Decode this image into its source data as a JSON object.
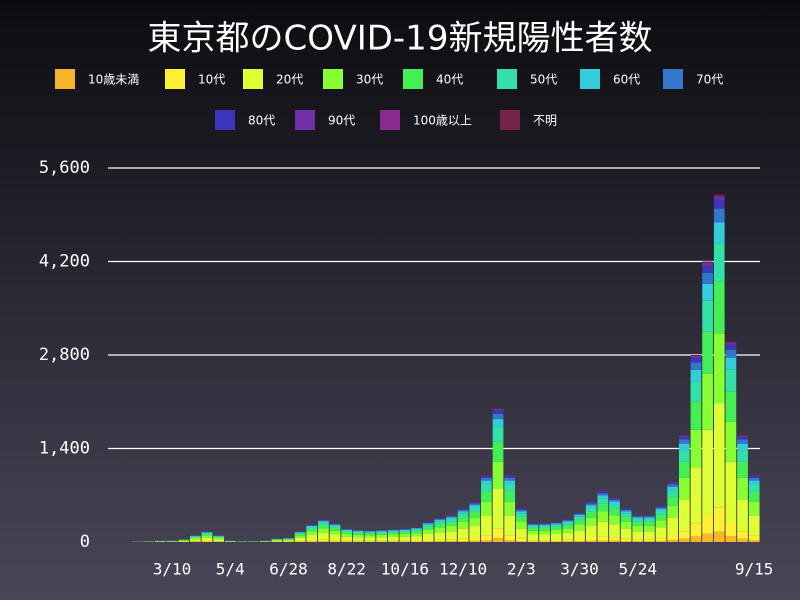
{
  "chart_data": {
    "type": "stacked_bar",
    "title": "東京都のCOVID-19新規陽性者数",
    "categories": [
      null,
      null,
      null,
      null,
      null,
      "3/10",
      null,
      null,
      null,
      null,
      "5/4",
      null,
      null,
      null,
      null,
      "6/28",
      null,
      null,
      null,
      null,
      "8/22",
      null,
      null,
      null,
      null,
      "10/16",
      null,
      null,
      null,
      null,
      "12/10",
      null,
      null,
      null,
      null,
      "2/3",
      null,
      null,
      null,
      null,
      "3/30",
      null,
      null,
      null,
      null,
      "5/24",
      null,
      null,
      null,
      null,
      null,
      null,
      null,
      null,
      null,
      "9/15"
    ],
    "ylim": [
      0,
      5600
    ],
    "yticks": [
      0,
      {
        "value": 1400,
        "label": "1,400"
      },
      {
        "value": 2800,
        "label": "2,800"
      },
      {
        "value": 4200,
        "label": "4,200"
      },
      {
        "value": 5600,
        "label": "5,600"
      }
    ],
    "grid": true,
    "series": [
      {
        "name": "10歳未満",
        "color": "#f7b52a",
        "values": [
          0,
          0,
          0,
          0,
          1,
          1,
          1,
          3,
          5,
          3,
          1,
          0,
          0,
          1,
          2,
          2,
          5,
          8,
          10,
          8,
          6,
          5,
          5,
          5,
          6,
          6,
          7,
          9,
          11,
          12,
          15,
          18,
          30,
          60,
          30,
          15,
          8,
          8,
          9,
          10,
          13,
          18,
          23,
          20,
          15,
          12,
          12,
          16,
          27,
          48,
          84,
          126,
          156,
          90,
          48,
          30
        ]
      },
      {
        "name": "10代",
        "color": "#fff033",
        "values": [
          0,
          0,
          0,
          1,
          1,
          1,
          3,
          7,
          11,
          7,
          1,
          1,
          1,
          1,
          4,
          4,
          11,
          18,
          24,
          20,
          14,
          13,
          12,
          13,
          13,
          14,
          15,
          21,
          25,
          28,
          35,
          42,
          70,
          140,
          70,
          35,
          20,
          20,
          21,
          24,
          31,
          42,
          53,
          46,
          35,
          28,
          28,
          38,
          63,
          112,
          196,
          294,
          364,
          210,
          112,
          70
        ]
      },
      {
        "name": "20代",
        "color": "#ddff33",
        "values": [
          0,
          0,
          2,
          3,
          6,
          6,
          12,
          30,
          48,
          30,
          6,
          3,
          3,
          6,
          15,
          18,
          48,
          78,
          102,
          84,
          60,
          54,
          51,
          54,
          57,
          60,
          66,
          90,
          108,
          120,
          150,
          180,
          300,
          600,
          300,
          150,
          84,
          84,
          90,
          102,
          132,
          180,
          228,
          198,
          150,
          120,
          120,
          162,
          270,
          480,
          840,
          1260,
          1560,
          900,
          480,
          300
        ]
      },
      {
        "name": "30代",
        "color": "#88ff33",
        "values": [
          0,
          0,
          1,
          2,
          4,
          4,
          8,
          20,
          32,
          20,
          4,
          2,
          2,
          4,
          10,
          12,
          32,
          52,
          68,
          56,
          40,
          36,
          34,
          36,
          38,
          40,
          44,
          60,
          72,
          80,
          100,
          120,
          200,
          400,
          200,
          100,
          56,
          56,
          60,
          68,
          88,
          120,
          152,
          132,
          100,
          80,
          80,
          108,
          180,
          320,
          560,
          840,
          1040,
          600,
          320,
          200
        ]
      },
      {
        "name": "40代",
        "color": "#44ee55",
        "values": [
          0,
          0,
          1,
          2,
          3,
          3,
          6,
          15,
          24,
          15,
          3,
          2,
          2,
          3,
          8,
          9,
          24,
          39,
          51,
          42,
          30,
          27,
          26,
          27,
          29,
          30,
          33,
          45,
          54,
          60,
          75,
          90,
          150,
          300,
          150,
          75,
          42,
          42,
          45,
          51,
          66,
          90,
          114,
          99,
          75,
          60,
          60,
          81,
          135,
          240,
          420,
          630,
          780,
          450,
          240,
          150
        ]
      },
      {
        "name": "50代",
        "color": "#33e0a8",
        "values": [
          0,
          0,
          1,
          1,
          2,
          2,
          4,
          11,
          18,
          11,
          2,
          1,
          1,
          2,
          6,
          7,
          18,
          29,
          37,
          31,
          22,
          20,
          19,
          20,
          21,
          22,
          24,
          33,
          40,
          44,
          55,
          66,
          110,
          220,
          110,
          55,
          31,
          31,
          33,
          37,
          48,
          66,
          84,
          73,
          55,
          44,
          44,
          59,
          99,
          176,
          308,
          462,
          572,
          330,
          176,
          110
        ]
      },
      {
        "name": "60代",
        "color": "#33ccdd",
        "values": [
          0,
          0,
          0,
          1,
          1,
          1,
          2,
          6,
          10,
          6,
          1,
          1,
          1,
          1,
          3,
          4,
          10,
          16,
          20,
          17,
          12,
          11,
          10,
          11,
          11,
          12,
          13,
          18,
          22,
          24,
          30,
          36,
          60,
          120,
          60,
          30,
          17,
          17,
          18,
          20,
          26,
          36,
          46,
          40,
          30,
          24,
          24,
          32,
          54,
          96,
          168,
          252,
          312,
          180,
          96,
          60
        ]
      },
      {
        "name": "70代",
        "color": "#3377cc",
        "values": [
          0,
          0,
          0,
          0,
          1,
          1,
          2,
          4,
          6,
          4,
          1,
          0,
          0,
          1,
          2,
          2,
          6,
          10,
          14,
          11,
          8,
          7,
          7,
          7,
          8,
          8,
          9,
          12,
          14,
          16,
          20,
          24,
          40,
          80,
          40,
          20,
          11,
          11,
          12,
          14,
          18,
          24,
          30,
          26,
          20,
          16,
          16,
          22,
          36,
          64,
          112,
          168,
          208,
          120,
          64,
          40
        ]
      },
      {
        "name": "80代",
        "color": "#3a36bb",
        "values": [
          0,
          0,
          0,
          0,
          1,
          1,
          1,
          3,
          4,
          3,
          1,
          0,
          0,
          1,
          1,
          2,
          4,
          7,
          9,
          7,
          5,
          5,
          4,
          5,
          5,
          5,
          6,
          8,
          9,
          10,
          13,
          15,
          25,
          50,
          25,
          13,
          7,
          7,
          8,
          9,
          11,
          15,
          19,
          17,
          13,
          10,
          10,
          14,
          23,
          40,
          70,
          105,
          130,
          75,
          40,
          25
        ]
      },
      {
        "name": "90代",
        "color": "#7030aa",
        "values": [
          0,
          0,
          0,
          0,
          0,
          0,
          0,
          1,
          2,
          1,
          0,
          0,
          0,
          0,
          1,
          1,
          2,
          3,
          3,
          3,
          2,
          2,
          2,
          2,
          2,
          2,
          2,
          3,
          4,
          4,
          5,
          6,
          10,
          20,
          10,
          5,
          3,
          3,
          3,
          3,
          4,
          6,
          8,
          7,
          5,
          4,
          4,
          5,
          9,
          16,
          28,
          42,
          52,
          30,
          16,
          10
        ]
      },
      {
        "name": "100歳以上",
        "color": "#8a2a8f",
        "values": [
          0,
          0,
          0,
          0,
          0,
          0,
          0,
          0,
          0,
          0,
          0,
          0,
          0,
          0,
          0,
          0,
          0,
          0,
          0,
          0,
          0,
          0,
          0,
          0,
          0,
          0,
          0,
          0,
          0,
          0,
          0,
          0,
          0,
          1,
          0,
          0,
          0,
          0,
          0,
          0,
          0,
          0,
          0,
          0,
          0,
          0,
          0,
          0,
          0,
          0,
          0,
          1,
          1,
          0,
          0,
          0
        ]
      },
      {
        "name": "不明",
        "color": "#772248",
        "values": [
          0,
          0,
          0,
          0,
          0,
          0,
          0,
          1,
          1,
          1,
          0,
          0,
          0,
          0,
          0,
          0,
          1,
          1,
          2,
          1,
          1,
          1,
          1,
          1,
          1,
          1,
          1,
          2,
          2,
          2,
          3,
          3,
          5,
          10,
          5,
          3,
          1,
          1,
          2,
          2,
          2,
          3,
          4,
          3,
          3,
          2,
          2,
          3,
          5,
          8,
          14,
          21,
          26,
          15,
          8,
          5
        ]
      }
    ]
  }
}
